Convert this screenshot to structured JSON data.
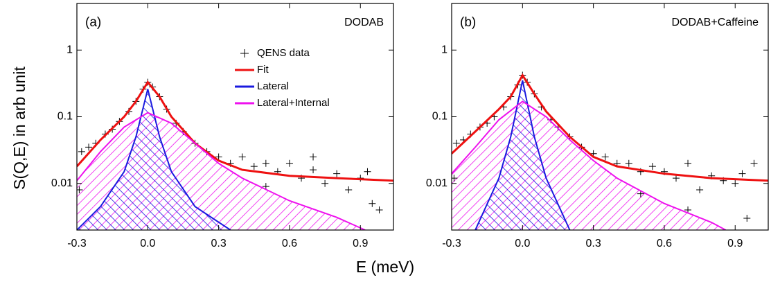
{
  "xlabel": "E (meV)",
  "ylabel": "S(Q,E) in arb unit",
  "chart_data": [
    {
      "type": "line",
      "panel_label": "(a)",
      "title": "DODAB",
      "log_y": true,
      "legend": "upper center",
      "xlim": [
        -0.3,
        1.04
      ],
      "xticks": [
        -0.3,
        {
          "value": 0,
          "label": "0.0"
        },
        0.3,
        0.6,
        0.9
      ],
      "ylim": [
        0.002,
        5
      ],
      "yticks": [
        0.01,
        0.1,
        1
      ],
      "series": [
        {
          "name": "QENS data",
          "type": "scatter",
          "color": "#000000",
          "x": [
            -0.28,
            -0.25,
            -0.22,
            -0.18,
            -0.15,
            -0.12,
            -0.08,
            -0.05,
            -0.02,
            0,
            0.02,
            0.05,
            0.08,
            0.12,
            0.15,
            0.2,
            0.25,
            0.3,
            0.35,
            0.4,
            0.45,
            0.5,
            0.55,
            0.6,
            0.65,
            0.7,
            0.75,
            0.8,
            0.85,
            0.9,
            0.95,
            0.98,
            -0.29,
            0.5,
            0.7,
            0.93
          ],
          "values": [
            0.03,
            0.035,
            0.04,
            0.055,
            0.065,
            0.085,
            0.12,
            0.17,
            0.26,
            0.33,
            0.28,
            0.2,
            0.13,
            0.08,
            0.06,
            0.04,
            0.03,
            0.025,
            0.02,
            0.025,
            0.018,
            0.02,
            0.015,
            0.02,
            0.012,
            0.016,
            0.01,
            0.014,
            0.008,
            0.012,
            0.005,
            0.004,
            0.008,
            0.009,
            0.025,
            0.015
          ]
        },
        {
          "name": "Fit",
          "type": "line",
          "color": "#ee1111",
          "x": [
            -0.3,
            -0.2,
            -0.1,
            -0.05,
            0,
            0.05,
            0.1,
            0.2,
            0.3,
            0.4,
            0.6,
            0.8,
            1.04
          ],
          "values": [
            0.018,
            0.045,
            0.1,
            0.17,
            0.33,
            0.2,
            0.1,
            0.04,
            0.022,
            0.016,
            0.013,
            0.012,
            0.011
          ]
        },
        {
          "name": "Lateral",
          "type": "line",
          "color": "#1a1adf",
          "hatch": true,
          "x": [
            -0.3,
            -0.2,
            -0.1,
            -0.05,
            0,
            0.05,
            0.1,
            0.2,
            0.35
          ],
          "values": [
            0.002,
            0.0045,
            0.015,
            0.05,
            0.26,
            0.05,
            0.015,
            0.0045,
            0.002
          ]
        },
        {
          "name": "Lateral+Internal",
          "type": "line",
          "color": "#ee11ee",
          "hatch": true,
          "x": [
            -0.3,
            -0.2,
            -0.1,
            0,
            0.1,
            0.2,
            0.3,
            0.4,
            0.6,
            0.8,
            0.92
          ],
          "values": [
            0.011,
            0.03,
            0.07,
            0.115,
            0.08,
            0.04,
            0.02,
            0.012,
            0.0055,
            0.0031,
            0.002
          ]
        }
      ]
    },
    {
      "type": "line",
      "panel_label": "(b)",
      "title": "DODAB+Caffeine",
      "log_y": true,
      "xlim": [
        -0.3,
        1.04
      ],
      "xticks": [
        -0.3,
        {
          "value": 0,
          "label": "0.0"
        },
        0.3,
        0.6,
        0.9
      ],
      "ylim": [
        0.002,
        5
      ],
      "yticks": [
        0.01,
        0.1,
        1
      ],
      "series": [
        {
          "type": "scatter",
          "color": "#000000",
          "x": [
            -0.28,
            -0.25,
            -0.22,
            -0.18,
            -0.15,
            -0.12,
            -0.08,
            -0.05,
            -0.02,
            0,
            0.02,
            0.05,
            0.08,
            0.12,
            0.15,
            0.2,
            0.25,
            0.3,
            0.35,
            0.4,
            0.45,
            0.5,
            0.55,
            0.6,
            0.65,
            0.7,
            0.75,
            0.8,
            0.85,
            0.9,
            0.95,
            0.98,
            -0.29,
            0.5,
            0.7,
            0.93
          ],
          "values": [
            0.04,
            0.045,
            0.055,
            0.07,
            0.08,
            0.1,
            0.14,
            0.2,
            0.3,
            0.42,
            0.33,
            0.22,
            0.14,
            0.09,
            0.07,
            0.05,
            0.035,
            0.028,
            0.025,
            0.02,
            0.02,
            0.015,
            0.018,
            0.015,
            0.012,
            0.02,
            0.008,
            0.013,
            0.011,
            0.01,
            0.003,
            0.02,
            0.012,
            0.007,
            0.004,
            0.014
          ]
        },
        {
          "type": "line",
          "color": "#ee1111",
          "x": [
            -0.3,
            -0.2,
            -0.1,
            -0.05,
            0,
            0.05,
            0.1,
            0.2,
            0.3,
            0.4,
            0.6,
            0.8,
            1.04
          ],
          "values": [
            0.028,
            0.06,
            0.13,
            0.2,
            0.42,
            0.22,
            0.12,
            0.05,
            0.025,
            0.018,
            0.014,
            0.012,
            0.011
          ]
        },
        {
          "type": "line",
          "color": "#1a1adf",
          "hatch": true,
          "x": [
            -0.2,
            -0.1,
            -0.05,
            0,
            0.05,
            0.1,
            0.2
          ],
          "values": [
            0.002,
            0.012,
            0.05,
            0.35,
            0.05,
            0.012,
            0.002
          ]
        },
        {
          "type": "line",
          "color": "#ee11ee",
          "hatch": true,
          "x": [
            -0.3,
            -0.2,
            -0.1,
            0,
            0.1,
            0.2,
            0.3,
            0.4,
            0.6,
            0.8,
            0.86
          ],
          "values": [
            0.014,
            0.035,
            0.09,
            0.17,
            0.1,
            0.045,
            0.022,
            0.012,
            0.005,
            0.0026,
            0.002
          ]
        }
      ]
    }
  ]
}
